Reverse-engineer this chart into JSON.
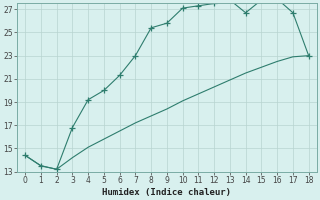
{
  "xlabel": "Humidex (Indice chaleur)",
  "x": [
    0,
    1,
    2,
    3,
    4,
    5,
    6,
    7,
    8,
    9,
    10,
    11,
    12,
    13,
    14,
    15,
    16,
    17,
    18
  ],
  "y_curve": [
    14.4,
    13.5,
    13.2,
    16.8,
    19.2,
    20.0,
    21.3,
    23.0,
    25.4,
    25.8,
    27.1,
    27.3,
    27.5,
    27.8,
    26.7,
    27.8,
    27.9,
    26.7,
    23.0
  ],
  "y_line": [
    14.4,
    13.5,
    13.2,
    14.2,
    15.1,
    15.8,
    16.5,
    17.2,
    17.8,
    18.4,
    19.1,
    19.7,
    20.3,
    20.9,
    21.5,
    22.0,
    22.5,
    22.9,
    23.0
  ],
  "line_color": "#2e7d6e",
  "bg_color": "#d8f0ee",
  "grid_color": "#b8d4d0",
  "tick_color": "#444444",
  "ylim": [
    13,
    27.5
  ],
  "xlim": [
    -0.5,
    18.5
  ],
  "yticks": [
    13,
    15,
    17,
    19,
    21,
    23,
    25,
    27
  ],
  "xticks": [
    0,
    1,
    2,
    3,
    4,
    5,
    6,
    7,
    8,
    9,
    10,
    11,
    12,
    13,
    14,
    15,
    16,
    17,
    18
  ]
}
